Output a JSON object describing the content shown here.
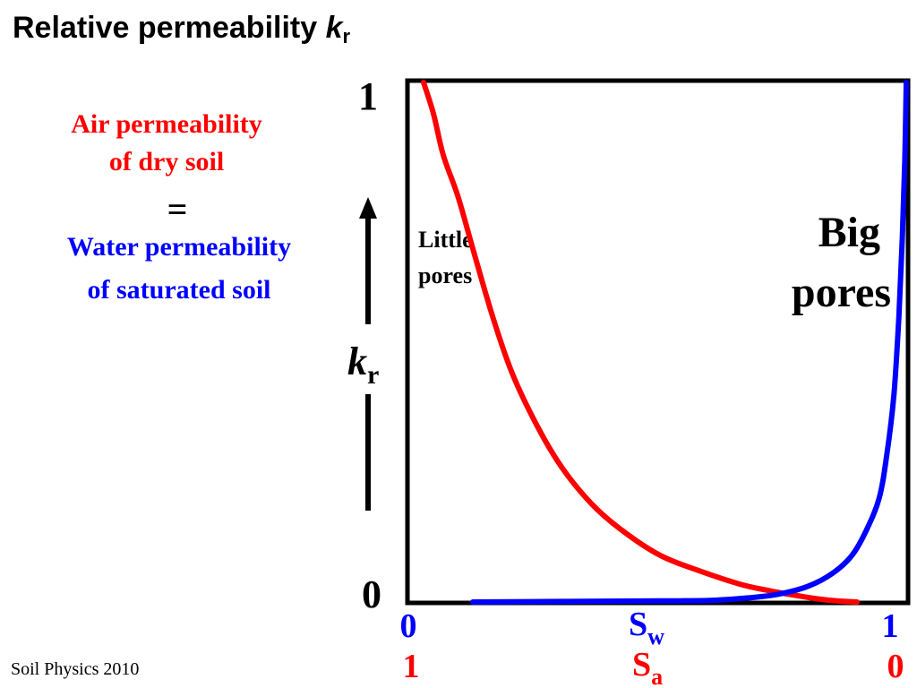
{
  "title": {
    "main": "Relative permeability ",
    "k": "k",
    "sub": "r"
  },
  "side_text": {
    "air_line1": "Air permeability",
    "air_line2": "of dry soil",
    "equals": "=",
    "water_line1": "Water permeability",
    "water_line2": "of saturated soil"
  },
  "footer": "Soil Physics 2010",
  "colors": {
    "air": "#ff0000",
    "water": "#0000ff",
    "axis": "#000000"
  },
  "chart_data": {
    "type": "line",
    "title": "",
    "y_axis": {
      "label": "k",
      "label_sub": "r",
      "range": [
        0,
        1
      ],
      "tick_top": "1",
      "tick_bottom": "0"
    },
    "x_axis_top": {
      "label": "S",
      "label_sub": "w",
      "range": [
        0,
        1
      ],
      "tick_left": "0",
      "tick_right": "1",
      "color": "#0000ff"
    },
    "x_axis_bottom": {
      "label": "S",
      "label_sub": "a",
      "range": [
        1,
        0
      ],
      "tick_left": "1",
      "tick_right": "0",
      "color": "#ff0000"
    },
    "annotations": [
      {
        "lines": [
          "Little",
          "pores"
        ]
      },
      {
        "lines": [
          "Big",
          "pores"
        ]
      }
    ],
    "series": [
      {
        "color": "#ff0000",
        "x": [
          0.02,
          0.04,
          0.06,
          0.09,
          0.12,
          0.16,
          0.2,
          0.25,
          0.3,
          0.36,
          0.42,
          0.5,
          0.58,
          0.66,
          0.72,
          0.78,
          0.82,
          0.86,
          0.9
        ],
        "y": [
          1.0,
          0.94,
          0.86,
          0.78,
          0.68,
          0.55,
          0.44,
          0.34,
          0.26,
          0.19,
          0.14,
          0.09,
          0.06,
          0.035,
          0.022,
          0.012,
          0.006,
          0.002,
          0.0
        ]
      },
      {
        "color": "#0000ff",
        "x": [
          0.12,
          0.3,
          0.5,
          0.6,
          0.68,
          0.74,
          0.8,
          0.85,
          0.89,
          0.92,
          0.945,
          0.96,
          0.975,
          0.985,
          0.992,
          0.997,
          1.0
        ],
        "y": [
          0.0,
          0.001,
          0.002,
          0.003,
          0.008,
          0.015,
          0.03,
          0.055,
          0.09,
          0.14,
          0.2,
          0.28,
          0.4,
          0.55,
          0.7,
          0.85,
          1.0
        ]
      }
    ]
  }
}
